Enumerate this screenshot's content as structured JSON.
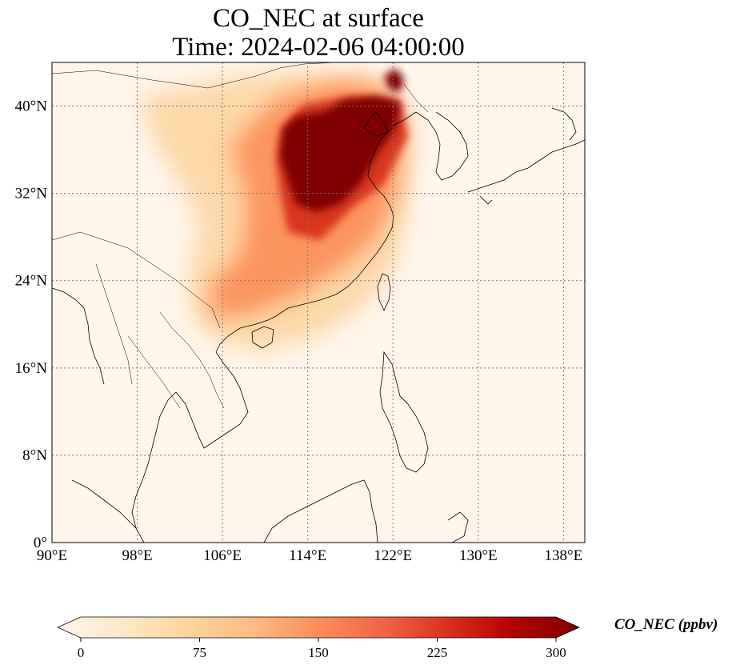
{
  "title": {
    "line1": "CO_NEC at surface",
    "line2": "Time: 2024-02-06 04:00:00"
  },
  "map": {
    "lon_range": [
      90,
      140
    ],
    "lat_range": [
      0,
      44
    ],
    "gridlines": true,
    "lon_ticks": [
      "90°E",
      "98°E",
      "106°E",
      "114°E",
      "122°E",
      "130°E",
      "138°E"
    ],
    "lon_values": [
      90,
      98,
      106,
      114,
      122,
      130,
      138
    ],
    "lat_ticks": [
      "0°",
      "8°N",
      "16°N",
      "24°N",
      "32°N",
      "40°N"
    ],
    "lat_values": [
      0,
      8,
      16,
      24,
      32,
      40
    ],
    "colors": {
      "low": "#fff5eb",
      "mid_low": "#fdd49e",
      "mid": "#fc8d59",
      "mid_high": "#d7301f",
      "high": "#7f0000",
      "coast": "#000000",
      "grid": "#777777"
    }
  },
  "colorbar": {
    "label": "CO_NEC (ppbv)",
    "min": 0,
    "max": 300,
    "ticks": [
      "0",
      "75",
      "150",
      "225",
      "300"
    ],
    "tick_values": [
      0,
      75,
      150,
      225,
      300
    ],
    "extend": "both",
    "colormap": [
      "#fff5eb",
      "#fee8c8",
      "#fdd49e",
      "#fdbb84",
      "#fc8d59",
      "#ef6548",
      "#d7301f",
      "#b30000",
      "#7f0000"
    ]
  }
}
